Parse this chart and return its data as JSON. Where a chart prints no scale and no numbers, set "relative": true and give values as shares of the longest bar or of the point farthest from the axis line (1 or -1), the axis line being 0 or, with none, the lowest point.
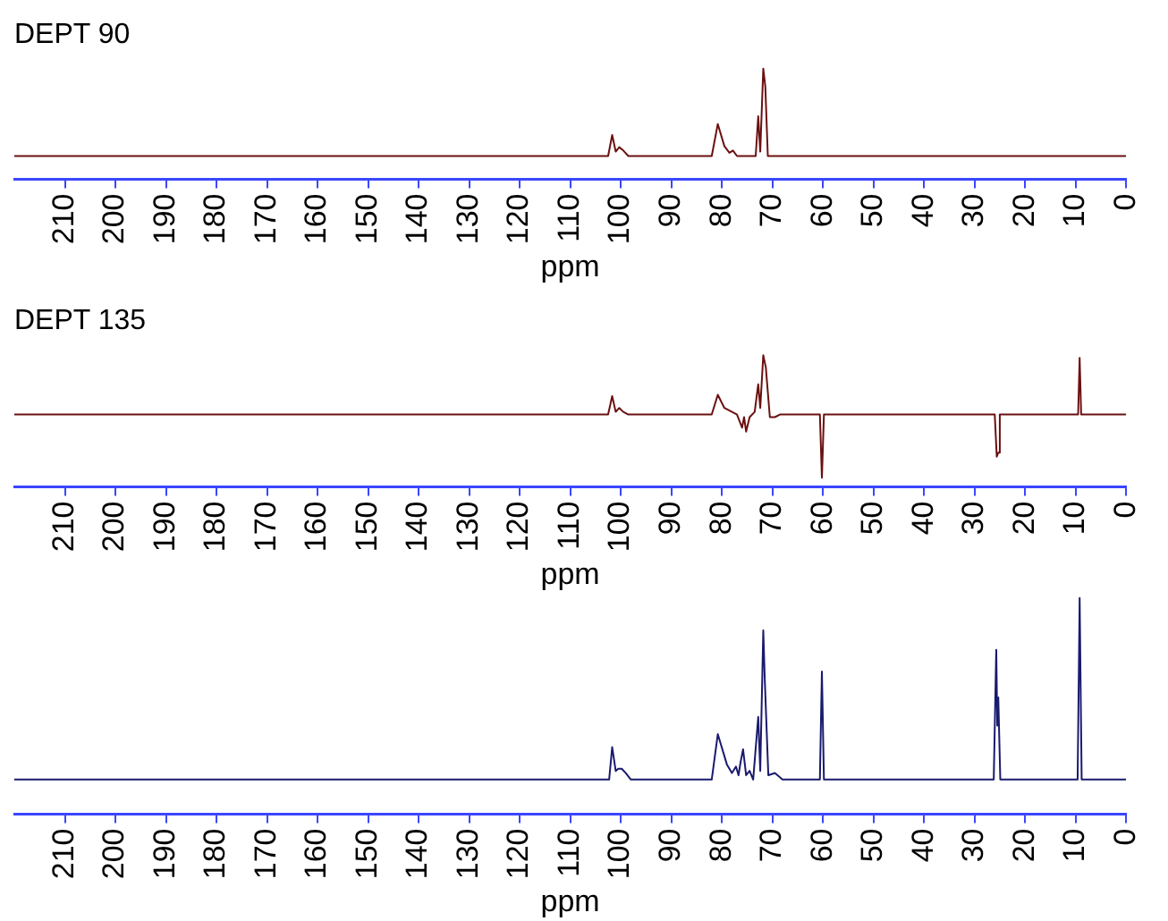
{
  "chart_data": [
    {
      "type": "line",
      "title": "DEPT 90",
      "xlabel": "ppm",
      "relative": true,
      "tick_labels": "x",
      "legend": false,
      "grid": false,
      "xlim": [
        220,
        0
      ],
      "xticks": [
        210,
        200,
        190,
        180,
        170,
        160,
        150,
        140,
        130,
        120,
        110,
        100,
        90,
        80,
        70,
        60,
        50,
        40,
        30,
        20,
        10,
        0
      ],
      "series": [
        {
          "color": "#6b1010",
          "x": [
            220,
            102.5,
            101.7,
            101,
            100.3,
            99.5,
            98.5,
            82,
            80.8,
            79.5,
            78.5,
            77.8,
            77,
            73.3,
            72.8,
            72.4,
            71.8,
            71.4,
            70.9,
            0
          ],
          "values": [
            0.21,
            0.21,
            0.4,
            0.25,
            0.29,
            0.26,
            0.21,
            0.21,
            0.5,
            0.3,
            0.24,
            0.26,
            0.21,
            0.21,
            0.57,
            0.25,
            1,
            0.84,
            0.21,
            0.21
          ]
        }
      ]
    },
    {
      "type": "line",
      "title": "DEPT 135",
      "xlabel": "ppm",
      "relative": true,
      "tick_labels": "x",
      "legend": false,
      "grid": false,
      "xlim": [
        220,
        0
      ],
      "xticks": [
        210,
        200,
        190,
        180,
        170,
        160,
        150,
        140,
        130,
        120,
        110,
        100,
        90,
        80,
        70,
        60,
        50,
        40,
        30,
        20,
        10,
        0
      ],
      "series": [
        {
          "color": "#6b1010",
          "x": [
            220,
            102.5,
            101.7,
            101,
            100.3,
            99.5,
            98.5,
            82,
            80.8,
            79.5,
            78,
            77,
            76,
            75.6,
            75.2,
            74.5,
            73.5,
            72.8,
            72.4,
            71.8,
            71.3,
            70.5,
            69.5,
            68.5,
            60.6,
            60.2,
            59.8,
            26,
            25.6,
            25.3,
            25,
            9.5,
            9.2,
            8.9,
            0
          ],
          "values": [
            0.55,
            0.55,
            0.69,
            0.57,
            0.6,
            0.57,
            0.55,
            0.55,
            0.7,
            0.6,
            0.57,
            0.55,
            0.45,
            0.53,
            0.42,
            0.53,
            0.57,
            0.78,
            0.6,
            1,
            0.91,
            0.53,
            0.53,
            0.55,
            0.55,
            0.07,
            0.55,
            0.55,
            0.23,
            0.26,
            0.55,
            0.55,
            0.98,
            0.55,
            0.55
          ]
        }
      ]
    },
    {
      "type": "line",
      "xlabel": "ppm",
      "relative": true,
      "tick_labels": "x",
      "legend": false,
      "grid": false,
      "xlim": [
        220,
        0
      ],
      "xticks": [
        210,
        200,
        190,
        180,
        170,
        160,
        150,
        140,
        130,
        120,
        110,
        100,
        90,
        80,
        70,
        60,
        50,
        40,
        30,
        20,
        10,
        0
      ],
      "series": [
        {
          "color": "#1a1a6e",
          "x": [
            220,
            102.3,
            101.7,
            101,
            100.5,
            99.8,
            99,
            98,
            82,
            80.8,
            79,
            78,
            77.2,
            76.7,
            76.3,
            75.8,
            75.2,
            74.5,
            73.8,
            72.8,
            72.4,
            71.8,
            71.5,
            70.8,
            69.5,
            68,
            60.6,
            60.2,
            59.8,
            26.2,
            25.7,
            25.5,
            25.3,
            24.9,
            9.6,
            9.2,
            8.8,
            0
          ],
          "values": [
            0.16,
            0.16,
            0.31,
            0.2,
            0.21,
            0.21,
            0.19,
            0.16,
            0.16,
            0.37,
            0.23,
            0.19,
            0.22,
            0.18,
            0.24,
            0.3,
            0.18,
            0.2,
            0.16,
            0.45,
            0.2,
            0.85,
            0.62,
            0.18,
            0.19,
            0.16,
            0.16,
            0.66,
            0.16,
            0.16,
            0.76,
            0.41,
            0.54,
            0.16,
            0.16,
            1,
            0.16,
            0.16
          ]
        }
      ]
    }
  ]
}
